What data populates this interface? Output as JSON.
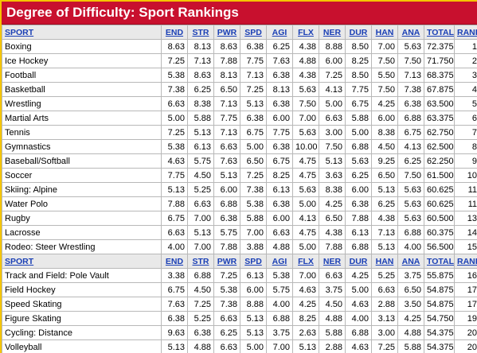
{
  "title": "Degree of Difficulty: Sport Rankings",
  "columns": [
    "SPORT",
    "END",
    "STR",
    "PWR",
    "SPD",
    "AGI",
    "FLX",
    "NER",
    "DUR",
    "HAN",
    "ANA",
    "TOTAL",
    "RANK"
  ],
  "rows": [
    [
      "Boxing",
      "8.63",
      "8.13",
      "8.63",
      "6.38",
      "6.25",
      "4.38",
      "8.88",
      "8.50",
      "7.00",
      "5.63",
      "72.375",
      "1"
    ],
    [
      "Ice Hockey",
      "7.25",
      "7.13",
      "7.88",
      "7.75",
      "7.63",
      "4.88",
      "6.00",
      "8.25",
      "7.50",
      "7.50",
      "71.750",
      "2"
    ],
    [
      "Football",
      "5.38",
      "8.63",
      "8.13",
      "7.13",
      "6.38",
      "4.38",
      "7.25",
      "8.50",
      "5.50",
      "7.13",
      "68.375",
      "3"
    ],
    [
      "Basketball",
      "7.38",
      "6.25",
      "6.50",
      "7.25",
      "8.13",
      "5.63",
      "4.13",
      "7.75",
      "7.50",
      "7.38",
      "67.875",
      "4"
    ],
    [
      "Wrestling",
      "6.63",
      "8.38",
      "7.13",
      "5.13",
      "6.38",
      "7.50",
      "5.00",
      "6.75",
      "4.25",
      "6.38",
      "63.500",
      "5"
    ],
    [
      "Martial Arts",
      "5.00",
      "5.88",
      "7.75",
      "6.38",
      "6.00",
      "7.00",
      "6.63",
      "5.88",
      "6.00",
      "6.88",
      "63.375",
      "6"
    ],
    [
      "Tennis",
      "7.25",
      "5.13",
      "7.13",
      "6.75",
      "7.75",
      "5.63",
      "3.00",
      "5.00",
      "8.38",
      "6.75",
      "62.750",
      "7"
    ],
    [
      "Gymnastics",
      "5.38",
      "6.13",
      "6.63",
      "5.00",
      "6.38",
      "10.00",
      "7.50",
      "6.88",
      "4.50",
      "4.13",
      "62.500",
      "8"
    ],
    [
      "Baseball/Softball",
      "4.63",
      "5.75",
      "7.63",
      "6.50",
      "6.75",
      "4.75",
      "5.13",
      "5.63",
      "9.25",
      "6.25",
      "62.250",
      "9"
    ],
    [
      "Soccer",
      "7.75",
      "4.50",
      "5.13",
      "7.25",
      "8.25",
      "4.75",
      "3.63",
      "6.25",
      "6.50",
      "7.50",
      "61.500",
      "10"
    ],
    [
      "Skiing: Alpine",
      "5.13",
      "5.25",
      "6.00",
      "7.38",
      "6.13",
      "5.63",
      "8.38",
      "6.00",
      "5.13",
      "5.63",
      "60.625",
      "11"
    ],
    [
      "Water Polo",
      "7.88",
      "6.63",
      "6.88",
      "5.38",
      "6.38",
      "5.00",
      "4.25",
      "6.38",
      "6.25",
      "5.63",
      "60.625",
      "11"
    ],
    [
      "Rugby",
      "6.75",
      "7.00",
      "6.38",
      "5.88",
      "6.00",
      "4.13",
      "6.50",
      "7.88",
      "4.38",
      "5.63",
      "60.500",
      "13"
    ],
    [
      "Lacrosse",
      "6.63",
      "5.13",
      "5.75",
      "7.00",
      "6.63",
      "4.75",
      "4.38",
      "6.13",
      "7.13",
      "6.88",
      "60.375",
      "14"
    ],
    [
      "Rodeo: Steer Wrestling",
      "4.00",
      "7.00",
      "7.88",
      "3.88",
      "4.88",
      "5.00",
      "7.88",
      "6.88",
      "5.13",
      "4.00",
      "56.500",
      "15"
    ]
  ],
  "rows2": [
    [
      "Track and Field: Pole Vault",
      "3.38",
      "6.88",
      "7.25",
      "6.13",
      "5.38",
      "7.00",
      "6.63",
      "4.25",
      "5.25",
      "3.75",
      "55.875",
      "16"
    ],
    [
      "Field Hockey",
      "6.75",
      "4.50",
      "5.38",
      "6.00",
      "5.75",
      "4.63",
      "3.75",
      "5.00",
      "6.63",
      "6.50",
      "54.875",
      "17"
    ],
    [
      "Speed Skating",
      "7.63",
      "7.25",
      "7.38",
      "8.88",
      "4.00",
      "4.25",
      "4.50",
      "4.63",
      "2.88",
      "3.50",
      "54.875",
      "17"
    ],
    [
      "Figure Skating",
      "6.38",
      "5.25",
      "6.63",
      "5.13",
      "6.88",
      "8.25",
      "4.88",
      "4.00",
      "3.13",
      "4.25",
      "54.750",
      "19"
    ],
    [
      "Cycling: Distance",
      "9.63",
      "6.38",
      "6.25",
      "5.13",
      "3.75",
      "2.63",
      "5.88",
      "6.88",
      "3.00",
      "4.88",
      "54.375",
      "20"
    ],
    [
      "Volleyball",
      "5.13",
      "4.88",
      "6.63",
      "5.00",
      "7.00",
      "5.13",
      "2.88",
      "4.63",
      "7.25",
      "5.88",
      "54.375",
      "20"
    ],
    [
      "",
      "",
      "",
      "",
      "",
      "",
      "",
      "",
      "",
      "",
      "",
      "",
      ""
    ]
  ]
}
